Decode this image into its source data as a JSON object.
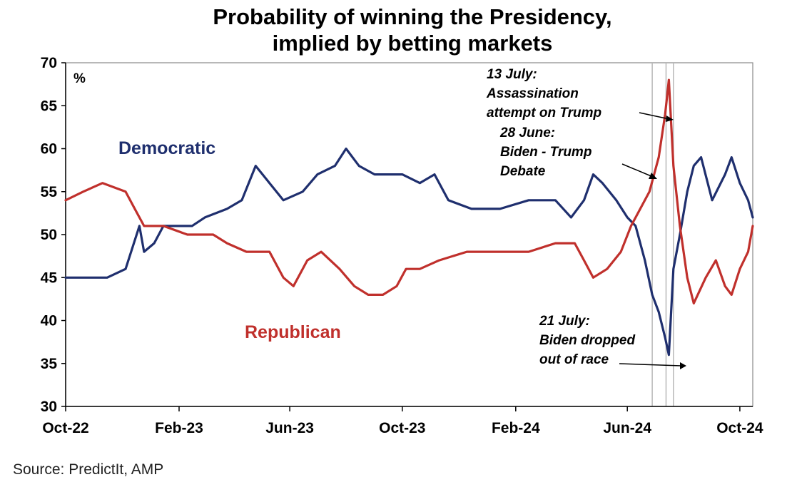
{
  "chart_data": {
    "type": "line",
    "title": [
      "Probability of winning the Presidency,",
      "implied by betting markets"
    ],
    "ylabel": "%",
    "ylim": [
      30,
      70
    ],
    "yticks": [
      30,
      35,
      40,
      45,
      50,
      55,
      60,
      65,
      70
    ],
    "xrange": [
      "2022-10-01",
      "2024-10-15"
    ],
    "xticks": [
      {
        "label": "Oct-22",
        "date": "2022-10-01"
      },
      {
        "label": "Feb-23",
        "date": "2023-02-01"
      },
      {
        "label": "Jun-23",
        "date": "2023-06-01"
      },
      {
        "label": "Oct-23",
        "date": "2023-10-01"
      },
      {
        "label": "Feb-24",
        "date": "2024-02-01"
      },
      {
        "label": "Jun-24",
        "date": "2024-06-01"
      },
      {
        "label": "Oct-24",
        "date": "2024-10-01"
      }
    ],
    "series": [
      {
        "name": "Democratic",
        "color": "#1f2f6e",
        "points": [
          [
            "2022-10-01",
            45
          ],
          [
            "2022-11-15",
            45
          ],
          [
            "2022-12-05",
            46
          ],
          [
            "2022-12-20",
            51
          ],
          [
            "2022-12-25",
            48
          ],
          [
            "2023-01-05",
            49
          ],
          [
            "2023-01-15",
            51
          ],
          [
            "2023-02-01",
            51
          ],
          [
            "2023-02-15",
            51
          ],
          [
            "2023-03-01",
            52
          ],
          [
            "2023-03-25",
            53
          ],
          [
            "2023-04-10",
            54
          ],
          [
            "2023-04-25",
            58
          ],
          [
            "2023-05-10",
            56
          ],
          [
            "2023-05-25",
            54
          ],
          [
            "2023-06-15",
            55
          ],
          [
            "2023-07-01",
            57
          ],
          [
            "2023-07-20",
            58
          ],
          [
            "2023-08-01",
            60
          ],
          [
            "2023-08-15",
            58
          ],
          [
            "2023-09-01",
            57
          ],
          [
            "2023-09-15",
            57
          ],
          [
            "2023-10-01",
            57
          ],
          [
            "2023-10-20",
            56
          ],
          [
            "2023-11-05",
            57
          ],
          [
            "2023-11-20",
            54
          ],
          [
            "2023-12-15",
            53
          ],
          [
            "2024-01-15",
            53
          ],
          [
            "2024-02-15",
            54
          ],
          [
            "2024-03-15",
            54
          ],
          [
            "2024-04-01",
            52
          ],
          [
            "2024-04-15",
            54
          ],
          [
            "2024-04-25",
            57
          ],
          [
            "2024-05-05",
            56
          ],
          [
            "2024-05-20",
            54
          ],
          [
            "2024-06-01",
            52
          ],
          [
            "2024-06-10",
            51
          ],
          [
            "2024-06-20",
            47
          ],
          [
            "2024-06-28",
            43
          ],
          [
            "2024-07-05",
            41
          ],
          [
            "2024-07-12",
            38
          ],
          [
            "2024-07-16",
            36
          ],
          [
            "2024-07-21",
            46
          ],
          [
            "2024-07-28",
            50
          ],
          [
            "2024-08-05",
            55
          ],
          [
            "2024-08-12",
            58
          ],
          [
            "2024-08-20",
            59
          ],
          [
            "2024-09-01",
            54
          ],
          [
            "2024-09-15",
            57
          ],
          [
            "2024-09-22",
            59
          ],
          [
            "2024-10-01",
            56
          ],
          [
            "2024-10-10",
            54
          ],
          [
            "2024-10-15",
            52
          ]
        ]
      },
      {
        "name": "Republican",
        "color": "#c0302c",
        "points": [
          [
            "2022-10-01",
            54
          ],
          [
            "2022-10-20",
            55
          ],
          [
            "2022-11-10",
            56
          ],
          [
            "2022-12-05",
            55
          ],
          [
            "2022-12-15",
            53
          ],
          [
            "2022-12-25",
            51
          ],
          [
            "2023-01-15",
            51
          ],
          [
            "2023-02-10",
            50
          ],
          [
            "2023-03-10",
            50
          ],
          [
            "2023-03-25",
            49
          ],
          [
            "2023-04-15",
            48
          ],
          [
            "2023-05-10",
            48
          ],
          [
            "2023-05-25",
            45
          ],
          [
            "2023-06-05",
            44
          ],
          [
            "2023-06-20",
            47
          ],
          [
            "2023-07-05",
            48
          ],
          [
            "2023-07-25",
            46
          ],
          [
            "2023-08-10",
            44
          ],
          [
            "2023-08-25",
            43
          ],
          [
            "2023-09-10",
            43
          ],
          [
            "2023-09-25",
            44
          ],
          [
            "2023-10-05",
            46
          ],
          [
            "2023-10-20",
            46
          ],
          [
            "2023-11-10",
            47
          ],
          [
            "2023-12-10",
            48
          ],
          [
            "2024-01-15",
            48
          ],
          [
            "2024-02-15",
            48
          ],
          [
            "2024-03-15",
            49
          ],
          [
            "2024-04-05",
            49
          ],
          [
            "2024-04-15",
            47
          ],
          [
            "2024-04-25",
            45
          ],
          [
            "2024-05-10",
            46
          ],
          [
            "2024-05-25",
            48
          ],
          [
            "2024-06-05",
            51
          ],
          [
            "2024-06-15",
            53
          ],
          [
            "2024-06-25",
            55
          ],
          [
            "2024-07-05",
            59
          ],
          [
            "2024-07-12",
            64
          ],
          [
            "2024-07-16",
            68
          ],
          [
            "2024-07-21",
            58
          ],
          [
            "2024-07-28",
            51
          ],
          [
            "2024-08-05",
            45
          ],
          [
            "2024-08-12",
            42
          ],
          [
            "2024-08-25",
            45
          ],
          [
            "2024-09-05",
            47
          ],
          [
            "2024-09-15",
            44
          ],
          [
            "2024-09-22",
            43
          ],
          [
            "2024-10-01",
            46
          ],
          [
            "2024-10-10",
            48
          ],
          [
            "2024-10-15",
            51
          ]
        ]
      }
    ],
    "event_lines": [
      "2024-06-28",
      "2024-07-13",
      "2024-07-21"
    ],
    "annotations": [
      {
        "lines": [
          "13 July:",
          "Assassination",
          "attempt on Trump"
        ]
      },
      {
        "lines": [
          "28 June:",
          "Biden - Trump",
          "Debate"
        ]
      },
      {
        "lines": [
          "21 July:",
          "Biden dropped",
          "out of race"
        ]
      }
    ],
    "source": "Source: PredictIt, AMP"
  }
}
